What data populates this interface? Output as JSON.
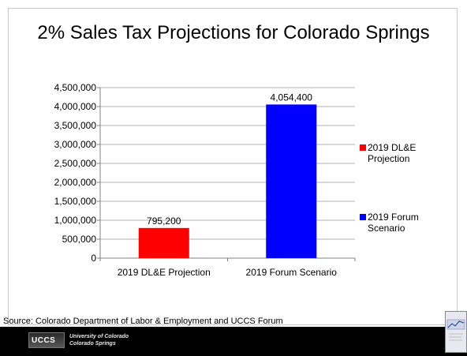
{
  "slide": {
    "title": "2% Sales Tax Projections for Colorado Springs",
    "source": "Source: Colorado Department of Labor & Employment and UCCS Forum"
  },
  "footer": {
    "logo_text": "UCCS",
    "university_line1": "University of Colorado",
    "university_line2": "Colorado Springs"
  },
  "chart_data": {
    "type": "bar",
    "title": "",
    "xlabel": "",
    "ylabel": "",
    "categories": [
      "2019 DL&E Projection",
      "2019 Forum Scenario"
    ],
    "values": [
      795200,
      4054400
    ],
    "value_labels": [
      "795,200",
      "4,054,400"
    ],
    "colors": [
      "#ff0000",
      "#0000ff"
    ],
    "ylim": [
      0,
      4500000
    ],
    "yticks": [
      0,
      500000,
      1000000,
      1500000,
      2000000,
      2500000,
      3000000,
      3500000,
      4000000,
      4500000
    ],
    "ytick_labels": [
      "0",
      "500,000",
      "1,000,000",
      "1,500,000",
      "2,000,000",
      "2,500,000",
      "3,000,000",
      "3,500,000",
      "4,000,000",
      "4,500,000"
    ],
    "grid": true,
    "legend": {
      "position": "right",
      "entries": [
        {
          "lines": [
            "2019 DL&E",
            "Projection"
          ],
          "color": "#ff0000"
        },
        {
          "lines": [
            "2019 Forum",
            "Scenario"
          ],
          "color": "#0000ff"
        }
      ]
    }
  }
}
